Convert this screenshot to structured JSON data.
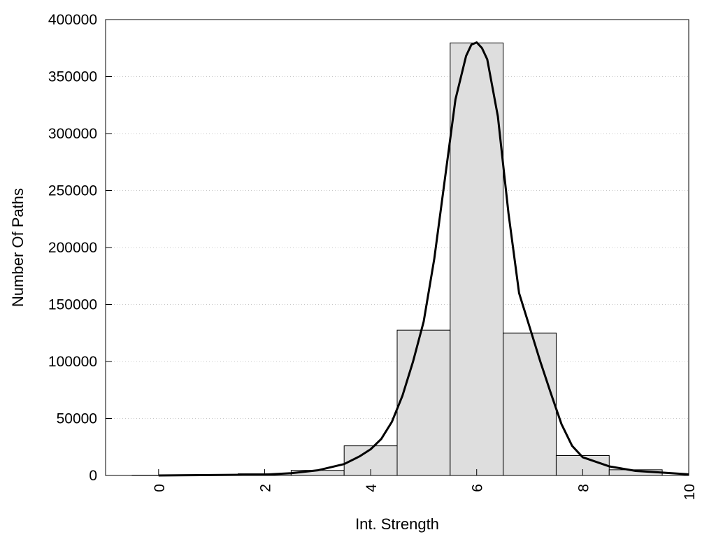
{
  "chart_data": {
    "type": "bar",
    "title": "",
    "xlabel": "Int. Strength",
    "ylabel": "Number Of Paths",
    "xlim": [
      -1,
      10
    ],
    "ylim": [
      0,
      400000
    ],
    "x_ticks": [
      0,
      2,
      4,
      6,
      8,
      10
    ],
    "y_ticks": [
      0,
      50000,
      100000,
      150000,
      200000,
      250000,
      300000,
      350000,
      400000
    ],
    "grid": "horizontal-dotted",
    "bars": {
      "x": [
        0,
        1,
        2,
        3,
        4,
        5,
        6,
        7,
        8,
        9
      ],
      "values": [
        200,
        500,
        1500,
        4500,
        26000,
        127500,
        379500,
        125000,
        17500,
        5000
      ],
      "width": 1,
      "color": "#dedede"
    },
    "curve": {
      "x": [
        0,
        1,
        2,
        2.5,
        3,
        3.5,
        3.8,
        4,
        4.2,
        4.4,
        4.6,
        4.8,
        5,
        5.2,
        5.4,
        5.6,
        5.8,
        5.9,
        6,
        6.1,
        6.2,
        6.4,
        6.6,
        6.8,
        7,
        7.2,
        7.4,
        7.6,
        7.8,
        8,
        8.5,
        9,
        9.5,
        10
      ],
      "y": [
        0,
        400,
        800,
        2000,
        4500,
        10000,
        17000,
        23000,
        32000,
        47000,
        70000,
        100000,
        135000,
        190000,
        260000,
        330000,
        368000,
        378000,
        380000,
        375000,
        365000,
        315000,
        230000,
        160000,
        130000,
        100000,
        72000,
        45000,
        26000,
        16000,
        8000,
        4000,
        2500,
        1000
      ],
      "color": "#000000"
    }
  }
}
